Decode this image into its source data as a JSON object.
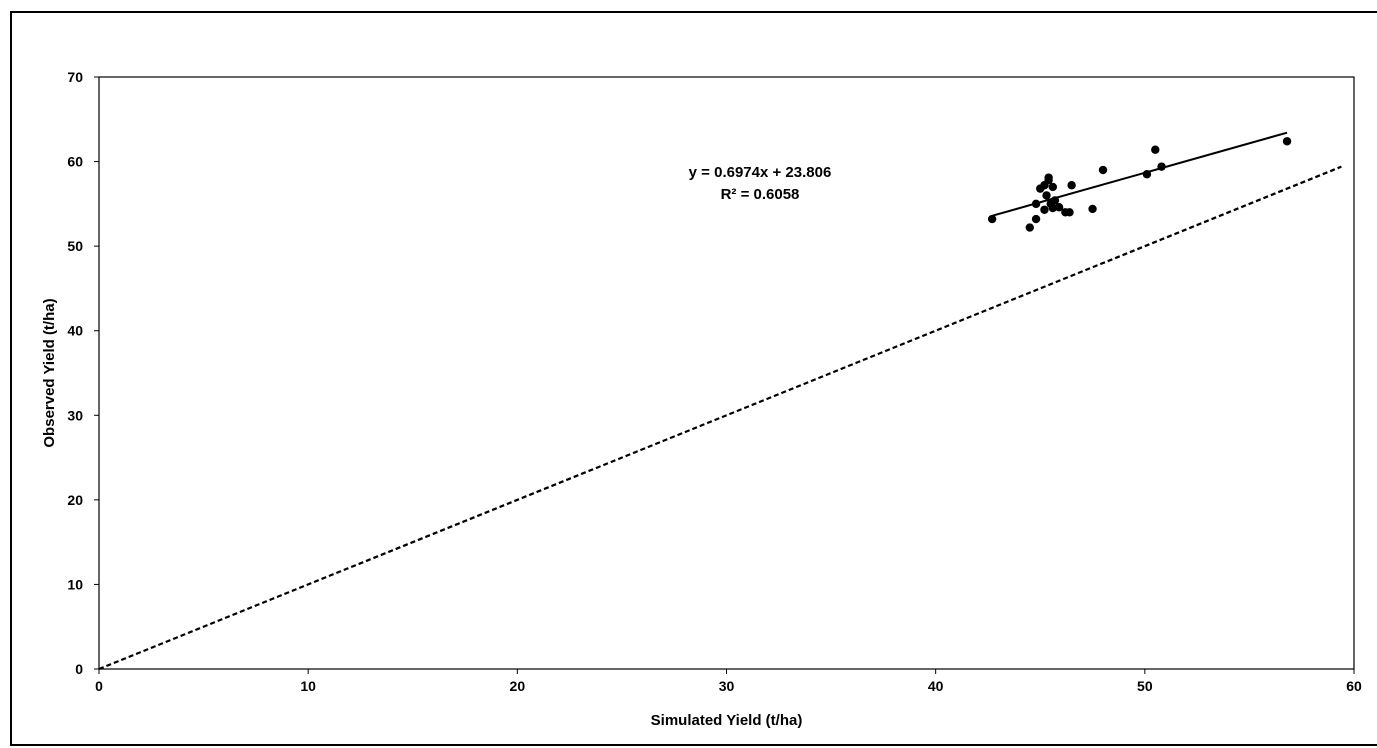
{
  "chart_data": {
    "type": "scatter",
    "title": "",
    "xlabel": "Simulated  Yield (t/ha)",
    "ylabel": "Observed Yield (t/ha)",
    "xlim": [
      0,
      60
    ],
    "ylim": [
      0,
      70
    ],
    "xticks": [
      "0",
      "10",
      "20",
      "30",
      "40",
      "50",
      "60"
    ],
    "yticks": [
      "0",
      "10",
      "20",
      "30",
      "40",
      "50",
      "60",
      "70"
    ],
    "grid": false,
    "legend": "none",
    "series": [
      {
        "points": [
          [
            42.7,
            53.2
          ],
          [
            44.5,
            52.2
          ],
          [
            44.8,
            53.2
          ],
          [
            44.8,
            55.0
          ],
          [
            45.0,
            56.8
          ],
          [
            45.2,
            54.3
          ],
          [
            45.2,
            57.2
          ],
          [
            45.3,
            56.0
          ],
          [
            45.4,
            57.8
          ],
          [
            45.4,
            58.1
          ],
          [
            45.5,
            55.0
          ],
          [
            45.6,
            57.0
          ],
          [
            45.6,
            54.5
          ],
          [
            45.7,
            55.4
          ],
          [
            45.9,
            54.6
          ],
          [
            46.2,
            54.0
          ],
          [
            46.4,
            54.0
          ],
          [
            46.5,
            57.2
          ],
          [
            47.5,
            54.4
          ],
          [
            48.0,
            59.0
          ],
          [
            50.1,
            58.5
          ],
          [
            50.5,
            61.4
          ],
          [
            50.8,
            59.4
          ],
          [
            56.8,
            62.4
          ]
        ],
        "color": "#000000"
      }
    ],
    "trendline": {
      "slope": 0.6974,
      "intercept": 23.806,
      "x_range": [
        42.7,
        56.8
      ],
      "style": "solid"
    },
    "reference_line": {
      "label": "1:1",
      "x_range": [
        0,
        59.4
      ],
      "style": "dashed"
    },
    "annotations": {
      "equation": "y = 0.6974x + 23.806",
      "r_squared": "R² = 0.6058"
    }
  }
}
